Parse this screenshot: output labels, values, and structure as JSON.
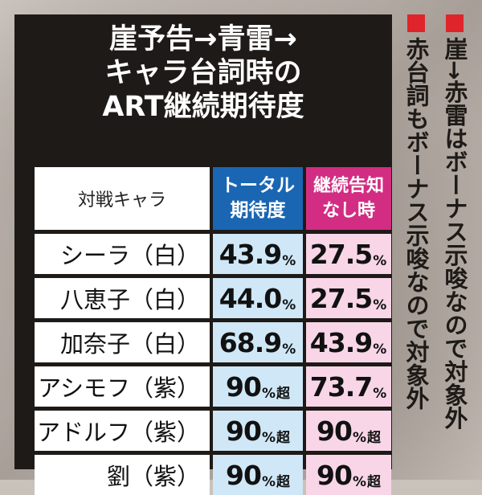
{
  "title_lines": [
    "崖予告→青雷→",
    "キャラ台詞時の",
    "ART継続期待度"
  ],
  "header": {
    "label": "対戦キャラ",
    "total_line1": "トータル",
    "total_line2": "期待度",
    "cont_line1": "継続告知",
    "cont_line2": "なし時"
  },
  "rows": [
    {
      "name": "シーラ（白）",
      "total": "43.9",
      "total_unit": "%",
      "total_suffix": "",
      "cont": "27.5",
      "cont_unit": "%",
      "cont_suffix": ""
    },
    {
      "name": "八恵子（白）",
      "total": "44.0",
      "total_unit": "%",
      "total_suffix": "",
      "cont": "27.5",
      "cont_unit": "%",
      "cont_suffix": ""
    },
    {
      "name": "加奈子（白）",
      "total": "68.9",
      "total_unit": "%",
      "total_suffix": "",
      "cont": "43.9",
      "cont_unit": "%",
      "cont_suffix": ""
    },
    {
      "name": "アシモフ（紫）",
      "total": "90",
      "total_unit": "%",
      "total_suffix": "超",
      "cont": "73.7",
      "cont_unit": "%",
      "cont_suffix": ""
    },
    {
      "name": "アドルフ（紫）",
      "total": "90",
      "total_unit": "%",
      "total_suffix": "超",
      "cont": "90",
      "cont_unit": "%",
      "cont_suffix": "超"
    },
    {
      "name": "劉（紫）",
      "total": "90",
      "total_unit": "%",
      "total_suffix": "超",
      "cont": "90",
      "cont_unit": "%",
      "cont_suffix": "超"
    }
  ],
  "notes": [
    "崖→赤雷はボーナス示唆なので対象外",
    "赤台詞もボーナス示唆なので対象外"
  ],
  "colors": {
    "card_bg": "#1e1a17",
    "total_header": "#1a66b3",
    "cont_header": "#d22d82",
    "total_cell": "#cfe7f6",
    "cont_cell": "#f8d6e7",
    "note_square": "#e0242b"
  }
}
